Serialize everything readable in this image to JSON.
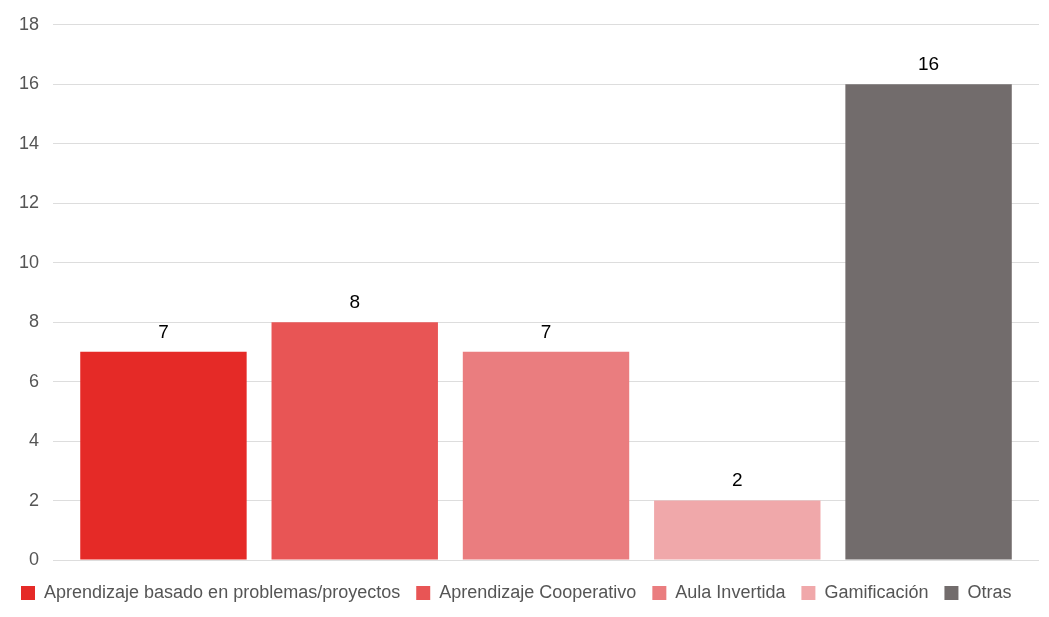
{
  "chart_data": {
    "type": "bar",
    "categories": [
      null
    ],
    "series": [
      {
        "name": "Aprendizaje basado en problemas/proyectos",
        "color": "#e52a27",
        "values": [
          7
        ]
      },
      {
        "name": "Aprendizaje Cooperativo",
        "color": "#e85555",
        "values": [
          8
        ]
      },
      {
        "name": "Aula Invertida",
        "color": "#ea7d7f",
        "values": [
          7
        ]
      },
      {
        "name": "Gamificación",
        "color": "#f0a8aa",
        "values": [
          2
        ]
      },
      {
        "name": "Otras",
        "color": "#726c6c",
        "values": [
          16
        ]
      }
    ],
    "ylim": [
      0,
      18
    ],
    "yticks": [
      0,
      2,
      4,
      6,
      8,
      10,
      12,
      14,
      16,
      18
    ],
    "grid": "y",
    "legend": "bottom",
    "data_labels": true
  }
}
